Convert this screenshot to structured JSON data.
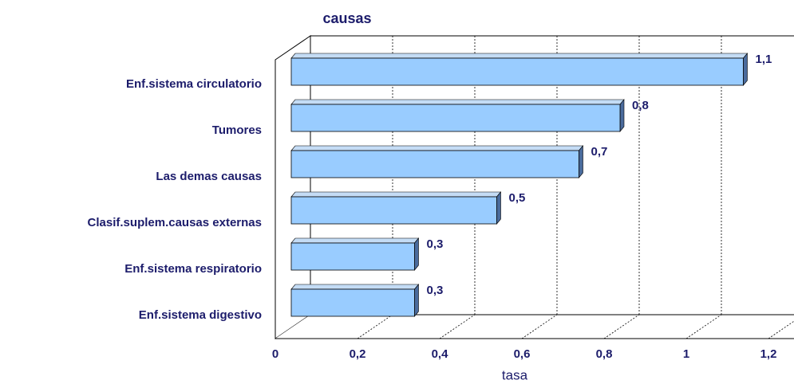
{
  "chart_data": {
    "type": "bar3d",
    "orientation": "horizontal",
    "title": "causas",
    "xlabel": "tasa",
    "categories": [
      "Enf.sistema circulatorio",
      "Tumores",
      "Las demas causas",
      "Clasif.suplem.causas externas",
      "Enf.sistema respiratorio",
      "Enf.sistema digestivo"
    ],
    "values": [
      1.1,
      0.8,
      0.7,
      0.5,
      0.3,
      0.3
    ],
    "value_labels": [
      "1,1",
      "0,8",
      "0,7",
      "0,5",
      "0,3",
      "0,3"
    ],
    "color": "#99ccff",
    "xlim": [
      0,
      1.2
    ],
    "xticks": [
      0,
      {
        "value": 0.2,
        "label": "0,2"
      },
      {
        "value": 0.4,
        "label": "0,4"
      },
      {
        "value": 0.6,
        "label": "0,6"
      },
      {
        "value": 0.8,
        "label": "0,8"
      },
      1,
      {
        "value": 1.2,
        "label": "1,2"
      }
    ],
    "grid": true
  }
}
